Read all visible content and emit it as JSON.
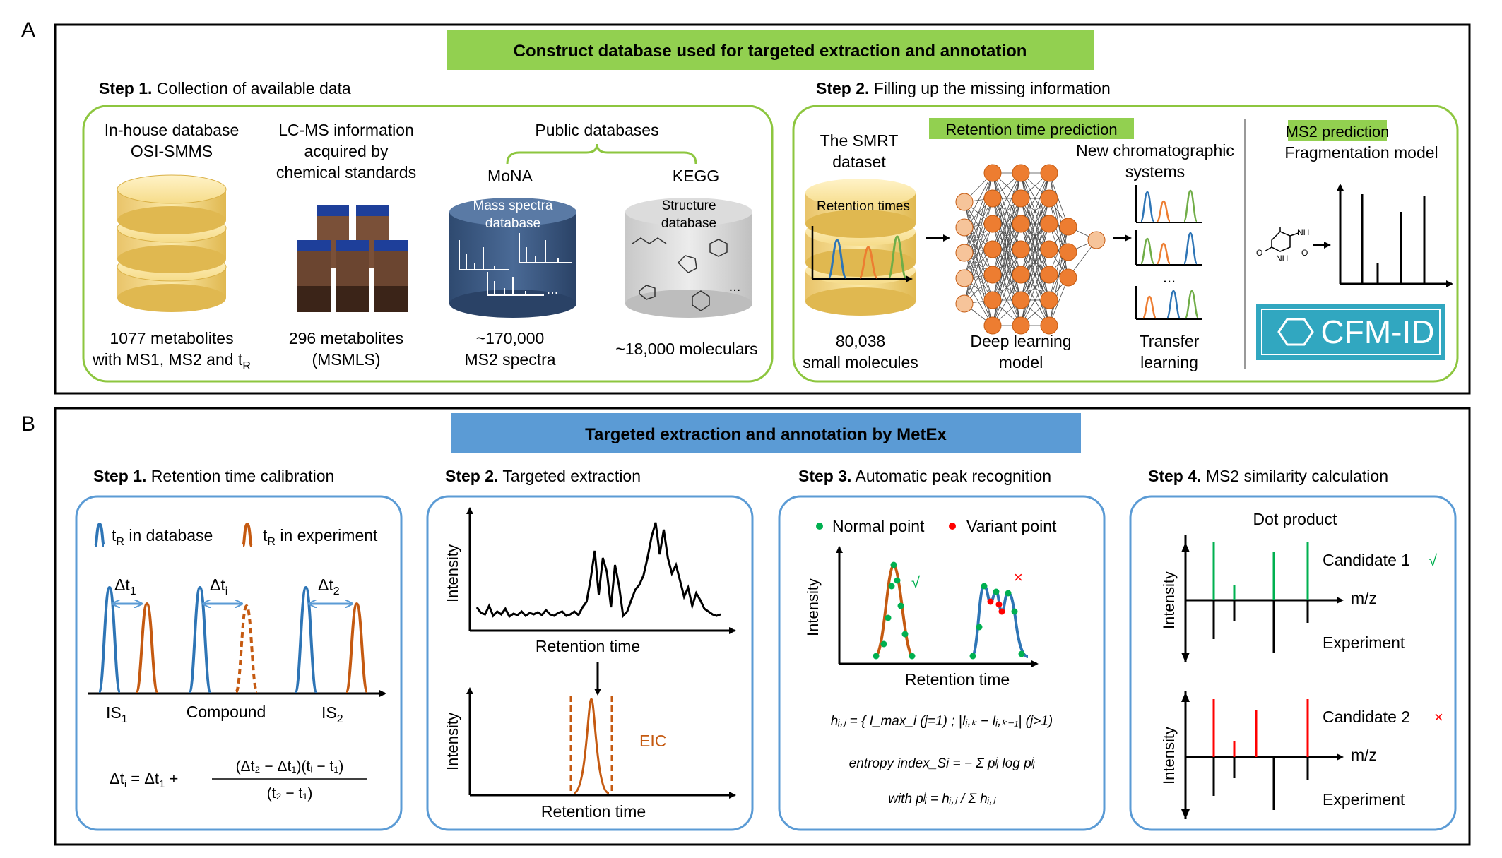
{
  "colors": {
    "green_banner": "#92d050",
    "blue_banner": "#5b9bd5",
    "green_box": "#8dc63f",
    "blue_box": "#5b9bd5",
    "db_blue": "#1f4e79",
    "orange": "#c55a11",
    "series_blue": "#2e75b6",
    "series_orange": "#ed7d31",
    "series_green": "#70ad47",
    "node_orange": "#ed7d31",
    "cfm_teal": "#31a7c0",
    "red": "#ff0000",
    "check_green": "#00b050"
  },
  "panel_a": {
    "letter": "A",
    "banner": "Construct database used for targeted extraction and annotation",
    "step1": {
      "bold": "Step 1.",
      "rest": " Collection of available data",
      "inhouse": {
        "line1": "In-house database",
        "line2": "OSI-SMMS",
        "cap1": "1077 metabolites",
        "cap2": "with MS1, MS2 and t",
        "cap2_sub": "R"
      },
      "lcms": {
        "line1": "LC-MS information",
        "line2": "acquired by",
        "line3": "chemical standards",
        "cap1": "296 metabolites",
        "cap2": "(MSMLS)"
      },
      "public": {
        "title": "Public databases",
        "mona": "MoNA",
        "mona_l1": "Mass spectra",
        "mona_l2": "database",
        "mona_cap1": "~170,000",
        "mona_cap2": "MS2 spectra",
        "kegg": "KEGG",
        "kegg_l1": "Structure",
        "kegg_l2": "database",
        "kegg_cap": "~18,000 moleculars",
        "ellipsis": "..."
      }
    },
    "step2": {
      "bold": "Step 2.",
      "rest": " Filling up the missing information",
      "rt_label": "Retention time prediction",
      "smrt_l1": "The SMRT",
      "smrt_l2": "dataset",
      "rt_times": "Retention times",
      "smrt_cap1": "80,038",
      "smrt_cap2": "small molecules",
      "dl_l1": "Deep learning",
      "dl_l2": "model",
      "new_l1": "New chromatographic",
      "new_l2": "systems",
      "tl_l1": "Transfer",
      "tl_l2": "learning",
      "ellipsis": "...",
      "ms2_label": "MS2 prediction",
      "frag": "Fragmentation model",
      "cfm": "CFM-ID",
      "mol_nh": "NH",
      "mol_o": "O"
    }
  },
  "panel_b": {
    "letter": "B",
    "banner": "Targeted extraction and annotation by MetEx",
    "step1": {
      "bold": "Step 1.",
      "rest": " Retention time calibration",
      "leg_db": "t",
      "leg_db_sub": "R",
      "leg_db_rest": " in database",
      "leg_exp": "t",
      "leg_exp_sub": "R",
      "leg_exp_rest": " in experiment",
      "dt1": "Δt",
      "dt1_sub": "1",
      "dti": "Δt",
      "dti_sub": "i",
      "dt2": "Δt",
      "dt2_sub": "2",
      "is1": "IS",
      "is1_sub": "1",
      "compound": "Compound",
      "is2": "IS",
      "is2_sub": "2",
      "formula_left": "Δt",
      "formula_left_sub": "i",
      "formula_mid": " = Δt",
      "formula_mid_sub": "1",
      "formula_plus": " +",
      "formula_num": "(Δt₂ − Δt₁)(tᵢ − t₁)",
      "formula_den": "(t₂ − t₁)"
    },
    "step2": {
      "bold": "Step 2.",
      "rest": " Targeted extraction",
      "intensity": "Intensity",
      "rt": "Retention time",
      "eic": "EIC"
    },
    "step3": {
      "bold": "Step 3.",
      "rest": " Automatic peak recognition",
      "normal": "Normal point",
      "variant": "Variant point",
      "intensity": "Intensity",
      "rt": "Retention time",
      "check": "√",
      "cross": "×",
      "eq1": "hᵢ,ⱼ = { I_max_i (j=1) ; |Iᵢ,ₖ − Iᵢ,ₖ₋₁| (j>1)",
      "eq2": "entropy index_Si = − Σ pʲᵢ log pʲᵢ",
      "eq3": "with pʲᵢ = hᵢ,ⱼ / Σ hᵢ,ⱼ"
    },
    "step4": {
      "bold": "Step 4.",
      "rest": " MS2 similarity calculation",
      "dot": "Dot product",
      "cand1": "Candidate 1",
      "cand2": "Candidate 2",
      "mz": "m/z",
      "experiment": "Experiment",
      "intensity": "Intensity",
      "check": "√",
      "cross": "×"
    }
  }
}
